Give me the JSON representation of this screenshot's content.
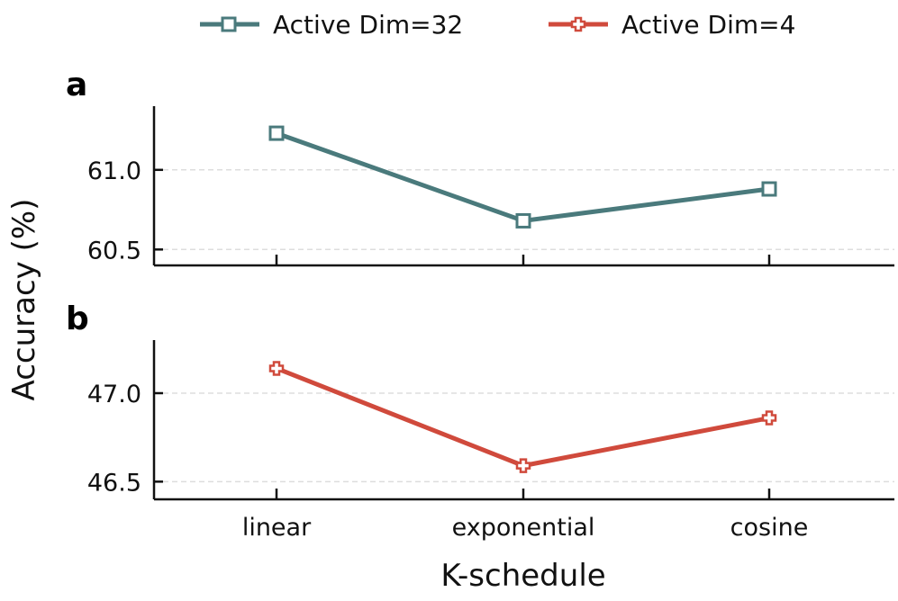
{
  "chart_data": {
    "type": "line",
    "xlabel": "K-schedule",
    "ylabel": "Accuracy (%)",
    "categories": [
      "linear",
      "exponential",
      "cosine"
    ],
    "legend": {
      "placement": "top-center"
    },
    "grid": {
      "y": true,
      "style": "dashed"
    },
    "panels": [
      {
        "label": "a",
        "ylim": [
          60.4,
          61.4
        ],
        "yticks": [
          "60.5",
          "61.0"
        ],
        "series": [
          {
            "name": "Active Dim=32",
            "color": "#4a7a7c",
            "marker": "square",
            "values": [
              61.23,
              60.68,
              60.88
            ]
          }
        ]
      },
      {
        "label": "b",
        "ylim": [
          46.4,
          47.3
        ],
        "yticks": [
          "46.5",
          "47.0"
        ],
        "series": [
          {
            "name": "Active Dim=4",
            "color": "#d04a3c",
            "marker": "plus",
            "values": [
              47.14,
              46.59,
              46.86
            ]
          }
        ]
      }
    ]
  }
}
